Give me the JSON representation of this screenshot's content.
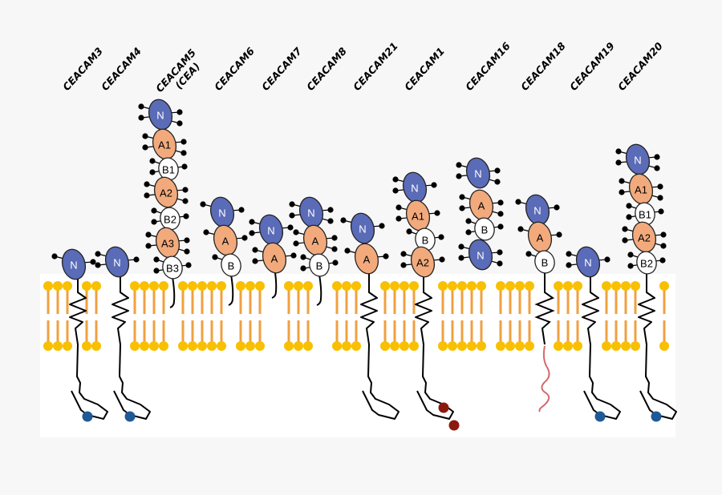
{
  "colors": {
    "n_domain": "#5a6bb8",
    "a_domain": "#f2aa7c",
    "b_domain": "#ffffff",
    "lipid_head": "#f8c000",
    "lipid_tail": "#f0a040",
    "itim_dot": "#1f5a96",
    "itam_dot": "#8b1a0e",
    "wavy_tail": "#d46a6a",
    "membrane_bg": "#ffffff",
    "page_bg": "#f7f7f7"
  },
  "proteins": [
    {
      "label": "CEACAM3",
      "label2": "",
      "domains": [
        {
          "t": "N",
          "label": "N"
        }
      ],
      "anchor": "transmembrane",
      "tail": "blue-dot"
    },
    {
      "label": "CEACAM4",
      "label2": "",
      "domains": [
        {
          "t": "N",
          "label": "N"
        }
      ],
      "anchor": "transmembrane",
      "tail": "blue-dot"
    },
    {
      "label": "CEACAM5",
      "label2": "(CEA)",
      "domains": [
        {
          "t": "N",
          "label": "N"
        },
        {
          "t": "A",
          "label": "A1"
        },
        {
          "t": "B",
          "label": "B1"
        },
        {
          "t": "A",
          "label": "A2"
        },
        {
          "t": "B",
          "label": "B2"
        },
        {
          "t": "A",
          "label": "A3"
        },
        {
          "t": "B",
          "label": "B3"
        }
      ],
      "anchor": "gpi",
      "tail": "none"
    },
    {
      "label": "CEACAM6",
      "label2": "",
      "domains": [
        {
          "t": "N",
          "label": "N"
        },
        {
          "t": "A",
          "label": "A"
        },
        {
          "t": "B",
          "label": "B"
        }
      ],
      "anchor": "gpi",
      "tail": "none"
    },
    {
      "label": "CEACAM7",
      "label2": "",
      "domains": [
        {
          "t": "N",
          "label": "N"
        },
        {
          "t": "A",
          "label": "A"
        }
      ],
      "anchor": "gpi",
      "tail": "none"
    },
    {
      "label": "CEACAM8",
      "label2": "",
      "domains": [
        {
          "t": "N",
          "label": "N"
        },
        {
          "t": "A",
          "label": "A"
        },
        {
          "t": "B",
          "label": "B"
        }
      ],
      "anchor": "gpi",
      "tail": "none"
    },
    {
      "label": "CEACAM21",
      "label2": "",
      "domains": [
        {
          "t": "N",
          "label": "N"
        },
        {
          "t": "A",
          "label": "A"
        }
      ],
      "anchor": "transmembrane",
      "tail": "plain"
    },
    {
      "label": "CEACAM1",
      "label2": "",
      "domains": [
        {
          "t": "N",
          "label": "N"
        },
        {
          "t": "A",
          "label": "A1"
        },
        {
          "t": "B",
          "label": "B"
        },
        {
          "t": "A",
          "label": "A2"
        }
      ],
      "anchor": "transmembrane",
      "tail": "two-red-dots"
    },
    {
      "label": "CEACAM16",
      "label2": "",
      "domains": [
        {
          "t": "N",
          "label": "N"
        },
        {
          "t": "A",
          "label": "A"
        },
        {
          "t": "B",
          "label": "B"
        },
        {
          "t": "N",
          "label": "N"
        }
      ],
      "anchor": "secreted",
      "tail": "none"
    },
    {
      "label": "CEACAM18",
      "label2": "",
      "domains": [
        {
          "t": "N",
          "label": "N"
        },
        {
          "t": "A",
          "label": "A"
        },
        {
          "t": "B",
          "label": "B"
        }
      ],
      "anchor": "transmembrane",
      "tail": "wavy"
    },
    {
      "label": "CEACAM19",
      "label2": "",
      "domains": [
        {
          "t": "N",
          "label": "N"
        }
      ],
      "anchor": "transmembrane",
      "tail": "blue-dot"
    },
    {
      "label": "CEACAM20",
      "label2": "",
      "domains": [
        {
          "t": "N",
          "label": "N"
        },
        {
          "t": "A",
          "label": "A1"
        },
        {
          "t": "B",
          "label": "B1"
        },
        {
          "t": "A",
          "label": "A2"
        },
        {
          "t": "B",
          "label": "B2"
        }
      ],
      "anchor": "transmembrane",
      "tail": "blue-dot"
    }
  ]
}
